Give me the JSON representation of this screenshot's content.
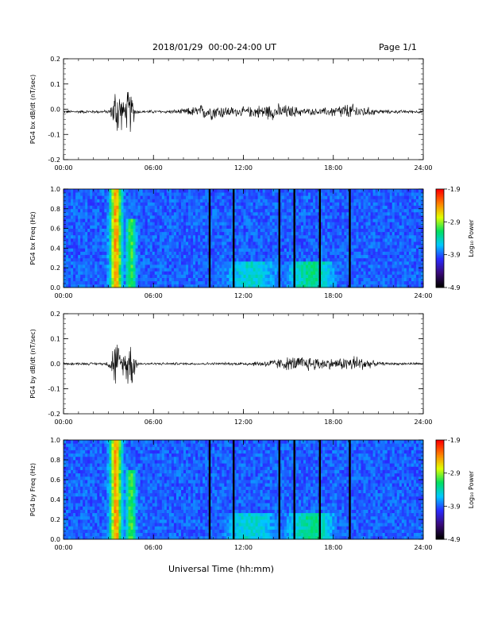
{
  "header": {
    "title": "2018/01/29  00:00-24:00 UT",
    "page": "Page 1/1"
  },
  "x_axis_label": "Universal Time (hh:mm)",
  "colorbar": {
    "ticks": [
      "-1.9",
      "-2.9",
      "-3.9",
      "-4.9"
    ],
    "label": "Log₁₀ Power",
    "colors": [
      "#000000",
      "#3a0a7a",
      "#2a2aff",
      "#00c8ff",
      "#00e060",
      "#e0ff00",
      "#ff8000",
      "#ff0000"
    ]
  },
  "chart_data": [
    {
      "type": "line",
      "ylabel": "PG4 bx dB/dt (nT/sec)",
      "xlim": [
        0,
        24
      ],
      "ylim": [
        -0.2,
        0.2
      ],
      "x_ticks": [
        "00:00",
        "06:00",
        "12:00",
        "18:00",
        "24:00"
      ],
      "y_ticks": [
        "0.2",
        "0.1",
        "0.0",
        "-0.1",
        "-0.2"
      ],
      "baseline": -0.01,
      "bursts": [
        {
          "center_hr": 3.6,
          "width_hr": 0.3,
          "amplitude": 0.1
        },
        {
          "center_hr": 4.4,
          "width_hr": 0.3,
          "amplitude": 0.07
        },
        {
          "center_hr": 9.8,
          "width_hr": 1.5,
          "amplitude": 0.02
        },
        {
          "center_hr": 14.0,
          "width_hr": 2.0,
          "amplitude": 0.02
        },
        {
          "center_hr": 19.0,
          "width_hr": 1.5,
          "amplitude": 0.02
        }
      ],
      "noise_amplitude": 0.005,
      "color": "#000000"
    },
    {
      "type": "heatmap",
      "ylabel": "PG4 bx Freq (Hz)",
      "xlim": [
        0,
        24
      ],
      "ylim": [
        0.0,
        1.0
      ],
      "x_ticks": [
        "00:00",
        "06:00",
        "12:00",
        "18:00",
        "24:00"
      ],
      "y_ticks": [
        "1.0",
        "0.8",
        "0.6",
        "0.4",
        "0.2",
        "0.0"
      ],
      "color_range": [
        -4.9,
        -1.9
      ],
      "gaps_hr": [
        9.75,
        11.35,
        14.4,
        15.4,
        17.1,
        19.1
      ],
      "enhancements": [
        {
          "center_hr": 3.5,
          "width_hr": 0.35,
          "fmax": 1.0,
          "level": -2.4
        },
        {
          "center_hr": 4.5,
          "width_hr": 0.5,
          "fmax": 0.7,
          "level": -3.1
        },
        {
          "center_hr": 12.5,
          "width_hr": 3.5,
          "fmax": 0.25,
          "level": -3.5
        },
        {
          "center_hr": 16.5,
          "width_hr": 2.5,
          "fmax": 0.25,
          "level": -3.3
        }
      ]
    },
    {
      "type": "line",
      "ylabel": "PG4 by dB/dt (nT/sec)",
      "xlim": [
        0,
        24
      ],
      "ylim": [
        -0.2,
        0.2
      ],
      "x_ticks": [
        "00:00",
        "06:00",
        "12:00",
        "18:00",
        "24:00"
      ],
      "y_ticks": [
        "0.2",
        "0.1",
        "0.0",
        "-0.1",
        "-0.2"
      ],
      "baseline": 0.0,
      "bursts": [
        {
          "center_hr": 3.5,
          "width_hr": 0.35,
          "amplitude": 0.07
        },
        {
          "center_hr": 4.4,
          "width_hr": 0.35,
          "amplitude": 0.08
        },
        {
          "center_hr": 16.0,
          "width_hr": 2.5,
          "amplitude": 0.02
        },
        {
          "center_hr": 19.5,
          "width_hr": 1.0,
          "amplitude": 0.02
        }
      ],
      "noise_amplitude": 0.004,
      "color": "#000000"
    },
    {
      "type": "heatmap",
      "ylabel": "PG4 by Freq (Hz)",
      "xlim": [
        0,
        24
      ],
      "ylim": [
        0.0,
        1.0
      ],
      "x_ticks": [
        "00:00",
        "06:00",
        "12:00",
        "18:00",
        "24:00"
      ],
      "y_ticks": [
        "1.0",
        "0.8",
        "0.6",
        "0.4",
        "0.2",
        "0.0"
      ],
      "color_range": [
        -4.9,
        -1.9
      ],
      "gaps_hr": [
        9.75,
        11.35,
        14.4,
        15.4,
        17.1,
        19.1
      ],
      "enhancements": [
        {
          "center_hr": 3.5,
          "width_hr": 0.35,
          "fmax": 1.0,
          "level": -2.4
        },
        {
          "center_hr": 4.5,
          "width_hr": 0.5,
          "fmax": 0.7,
          "level": -3.1
        },
        {
          "center_hr": 12.5,
          "width_hr": 3.5,
          "fmax": 0.25,
          "level": -3.5
        },
        {
          "center_hr": 16.5,
          "width_hr": 2.5,
          "fmax": 0.25,
          "level": -3.3
        }
      ]
    }
  ]
}
